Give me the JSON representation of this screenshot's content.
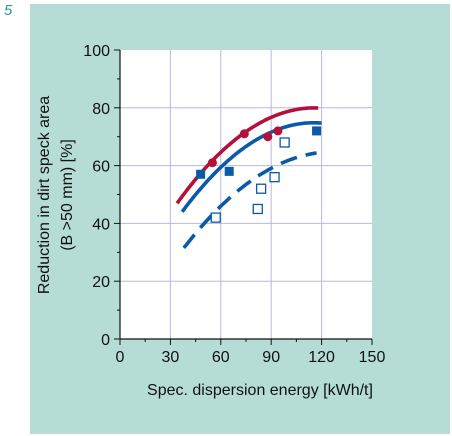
{
  "figure_number": "5",
  "chart_data": {
    "type": "scatter",
    "xlabel": "Spec. dispersion energy [kWh/t]",
    "ylabel_line1": "Reduction in dirt speck area",
    "ylabel_line2": "(В >50 mm) [%]",
    "xlim": [
      0,
      150
    ],
    "ylim": [
      0,
      100
    ],
    "x_ticks": [
      0,
      30,
      60,
      90,
      120,
      150
    ],
    "y_ticks": [
      0,
      20,
      40,
      60,
      80,
      100
    ],
    "grid": true,
    "colors": {
      "background": "#b5ddd5",
      "plot_area": "#ffffff",
      "grid": "#b8b8e0",
      "crimson": "#b3103a",
      "blue": "#0a5aa8"
    },
    "series": [
      {
        "marker": "circle",
        "color": "#b3103a",
        "points": [
          [
            55,
            61
          ],
          [
            74,
            71
          ],
          [
            88,
            70
          ],
          [
            94,
            72
          ]
        ],
        "fit": {
          "style": "solid",
          "x": [
            34,
            118
          ],
          "coef": [
            -0.00493,
            1.142,
            13.84
          ]
        }
      },
      {
        "marker": "filled-square",
        "color": "#0a5aa8",
        "points": [
          [
            48,
            57
          ],
          [
            65,
            58
          ],
          [
            117,
            72
          ]
        ],
        "fit": {
          "style": "solid",
          "x": [
            37,
            120
          ],
          "coef": [
            -0.005,
            1.155,
            8.125
          ]
        }
      },
      {
        "marker": "open-square",
        "color": "#0a5aa8",
        "points": [
          [
            57,
            42
          ],
          [
            82,
            45
          ],
          [
            84,
            52
          ],
          [
            92,
            56
          ],
          [
            98,
            68
          ]
        ],
        "fit": {
          "style": "dashed",
          "x": [
            38,
            117
          ],
          "coef": [
            -0.00423,
            1.0715,
            -3.1
          ]
        }
      }
    ]
  }
}
